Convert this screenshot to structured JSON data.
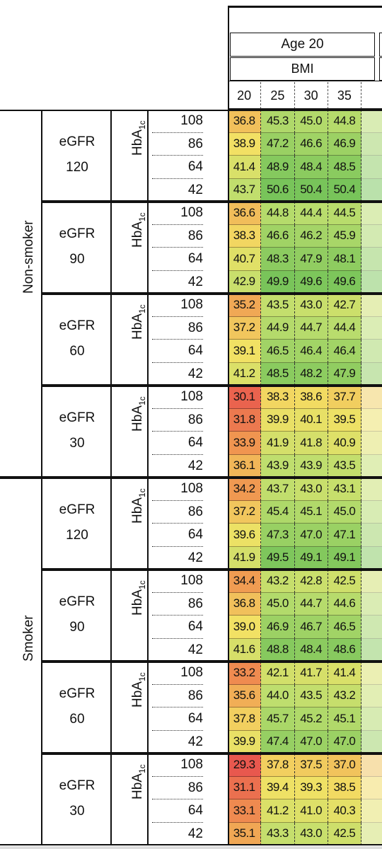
{
  "header": {
    "age": "Age 20",
    "bmi_label": "BMI",
    "bmi": [
      "20",
      "25",
      "30",
      "35"
    ]
  },
  "groups": [
    {
      "label": "Non-smoker",
      "subgroups": [
        {
          "egfr": "eGFR",
          "egfr_value": "120",
          "hba": "HbA",
          "hba_sub": "1c",
          "rows": [
            {
              "hba1c": "108",
              "values": [
                "36.8",
                "45.3",
                "45.0",
                "44.8"
              ]
            },
            {
              "hba1c": "86",
              "values": [
                "38.9",
                "47.2",
                "46.6",
                "46.9"
              ]
            },
            {
              "hba1c": "64",
              "values": [
                "41.4",
                "48.9",
                "48.4",
                "48.5"
              ]
            },
            {
              "hba1c": "42",
              "values": [
                "43.7",
                "50.6",
                "50.4",
                "50.4"
              ]
            }
          ]
        },
        {
          "egfr": "eGFR",
          "egfr_value": "90",
          "hba": "HbA",
          "hba_sub": "1c",
          "rows": [
            {
              "hba1c": "108",
              "values": [
                "36.6",
                "44.8",
                "44.4",
                "44.5"
              ]
            },
            {
              "hba1c": "86",
              "values": [
                "38.3",
                "46.6",
                "46.2",
                "45.9"
              ]
            },
            {
              "hba1c": "64",
              "values": [
                "40.7",
                "48.3",
                "47.9",
                "48.1"
              ]
            },
            {
              "hba1c": "42",
              "values": [
                "42.9",
                "49.9",
                "49.6",
                "49.6"
              ]
            }
          ]
        },
        {
          "egfr": "eGFR",
          "egfr_value": "60",
          "hba": "HbA",
          "hba_sub": "1c",
          "rows": [
            {
              "hba1c": "108",
              "values": [
                "35.2",
                "43.5",
                "43.0",
                "42.7"
              ]
            },
            {
              "hba1c": "86",
              "values": [
                "37.2",
                "44.9",
                "44.7",
                "44.4"
              ]
            },
            {
              "hba1c": "64",
              "values": [
                "39.1",
                "46.5",
                "46.4",
                "46.4"
              ]
            },
            {
              "hba1c": "42",
              "values": [
                "41.2",
                "48.5",
                "48.2",
                "47.9"
              ]
            }
          ]
        },
        {
          "egfr": "eGFR",
          "egfr_value": "30",
          "hba": "HbA",
          "hba_sub": "1c",
          "rows": [
            {
              "hba1c": "108",
              "values": [
                "30.1",
                "38.3",
                "38.6",
                "37.7"
              ]
            },
            {
              "hba1c": "86",
              "values": [
                "31.8",
                "39.9",
                "40.1",
                "39.5"
              ]
            },
            {
              "hba1c": "64",
              "values": [
                "33.9",
                "41.9",
                "41.8",
                "40.9"
              ]
            },
            {
              "hba1c": "42",
              "values": [
                "36.1",
                "43.9",
                "43.9",
                "43.5"
              ]
            }
          ]
        }
      ]
    },
    {
      "label": "Smoker",
      "subgroups": [
        {
          "egfr": "eGFR",
          "egfr_value": "120",
          "hba": "HbA",
          "hba_sub": "1c",
          "rows": [
            {
              "hba1c": "108",
              "values": [
                "34.2",
                "43.7",
                "43.0",
                "43.1"
              ]
            },
            {
              "hba1c": "86",
              "values": [
                "37.2",
                "45.4",
                "45.1",
                "45.0"
              ]
            },
            {
              "hba1c": "64",
              "values": [
                "39.6",
                "47.3",
                "47.0",
                "47.1"
              ]
            },
            {
              "hba1c": "42",
              "values": [
                "41.9",
                "49.5",
                "49.1",
                "49.1"
              ]
            }
          ]
        },
        {
          "egfr": "eGFR",
          "egfr_value": "90",
          "hba": "HbA",
          "hba_sub": "1c",
          "rows": [
            {
              "hba1c": "108",
              "values": [
                "34.4",
                "43.2",
                "42.8",
                "42.5"
              ]
            },
            {
              "hba1c": "86",
              "values": [
                "36.8",
                "45.0",
                "44.7",
                "44.6"
              ]
            },
            {
              "hba1c": "64",
              "values": [
                "39.0",
                "46.9",
                "46.7",
                "46.5"
              ]
            },
            {
              "hba1c": "42",
              "values": [
                "41.6",
                "48.8",
                "48.4",
                "48.6"
              ]
            }
          ]
        },
        {
          "egfr": "eGFR",
          "egfr_value": "60",
          "hba": "HbA",
          "hba_sub": "1c",
          "rows": [
            {
              "hba1c": "108",
              "values": [
                "33.2",
                "42.1",
                "41.7",
                "41.4"
              ]
            },
            {
              "hba1c": "86",
              "values": [
                "35.6",
                "44.0",
                "43.5",
                "43.2"
              ]
            },
            {
              "hba1c": "64",
              "values": [
                "37.8",
                "45.7",
                "45.2",
                "45.1"
              ]
            },
            {
              "hba1c": "42",
              "values": [
                "39.9",
                "47.4",
                "47.0",
                "47.0"
              ]
            }
          ]
        },
        {
          "egfr": "eGFR",
          "egfr_value": "30",
          "hba": "HbA",
          "hba_sub": "1c",
          "rows": [
            {
              "hba1c": "108",
              "values": [
                "29.3",
                "37.8",
                "37.5",
                "37.0"
              ]
            },
            {
              "hba1c": "86",
              "values": [
                "31.1",
                "39.4",
                "39.3",
                "38.5"
              ]
            },
            {
              "hba1c": "64",
              "values": [
                "33.1",
                "41.2",
                "41.0",
                "40.3"
              ]
            },
            {
              "hba1c": "42",
              "values": [
                "35.1",
                "43.3",
                "43.0",
                "42.5"
              ]
            }
          ]
        }
      ]
    }
  ]
}
